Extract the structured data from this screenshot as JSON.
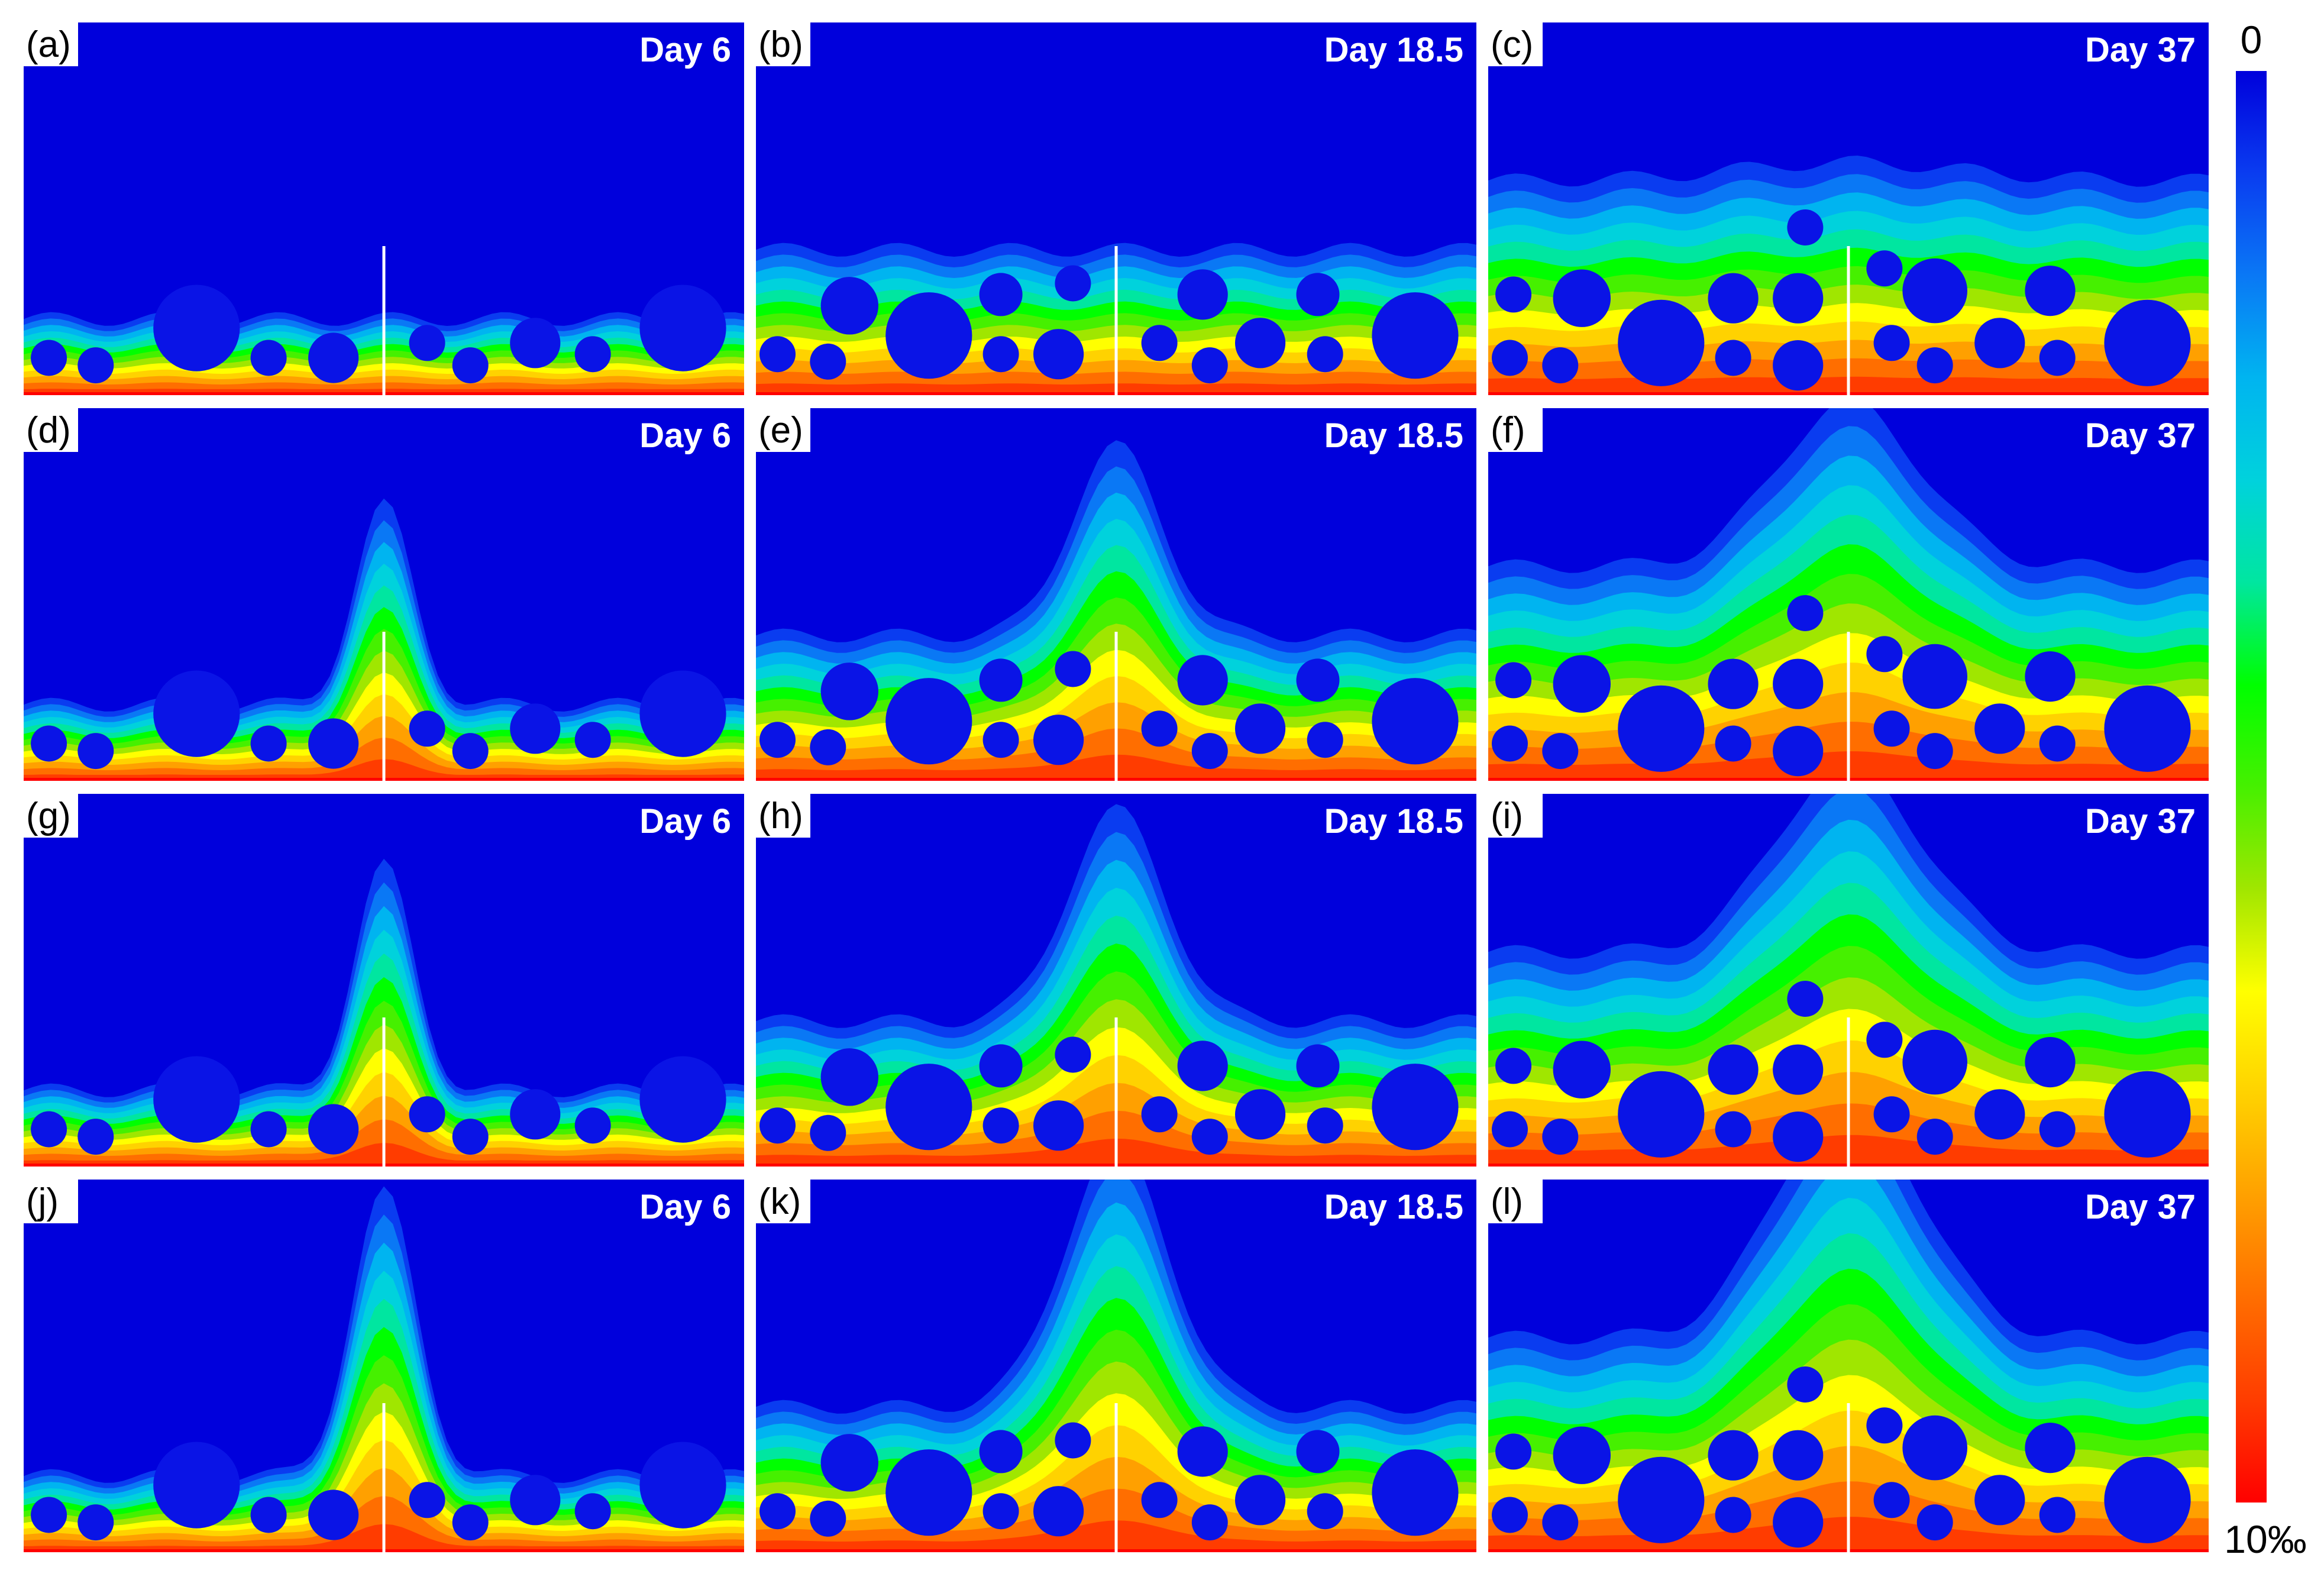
{
  "colors": {
    "background": "#0000dc",
    "particle": "#0a14e6",
    "crack": "#ffffff",
    "scale": [
      "#0000dc",
      "#0a3cf0",
      "#0a78f5",
      "#00b4f0",
      "#00d2dc",
      "#00e6a0",
      "#00ff00",
      "#46f000",
      "#a0e600",
      "#ffff00",
      "#ffd200",
      "#ffa000",
      "#ff6e00",
      "#ff3c00",
      "#ff0000"
    ]
  },
  "colorbar": {
    "min_label": "0",
    "max_label": "10‰"
  },
  "panels": [
    {
      "label": "(a)",
      "day": "Day 6",
      "row": 0,
      "col": 0,
      "front_level": 0.22,
      "crack_peak": 0.0,
      "peak_width": 0.0
    },
    {
      "label": "(b)",
      "day": "Day 18.5",
      "row": 0,
      "col": 1,
      "front_level": 0.42,
      "crack_peak": 0.0,
      "peak_width": 0.0
    },
    {
      "label": "(c)",
      "day": "Day 37",
      "row": 0,
      "col": 2,
      "front_level": 0.62,
      "crack_peak": 0.05,
      "peak_width": 0.35
    },
    {
      "label": "(d)",
      "day": "Day 6",
      "row": 1,
      "col": 0,
      "front_level": 0.22,
      "crack_peak": 0.55,
      "peak_width": 0.09
    },
    {
      "label": "(e)",
      "day": "Day 18.5",
      "row": 1,
      "col": 1,
      "front_level": 0.42,
      "crack_peak": 0.52,
      "peak_width": 0.14
    },
    {
      "label": "(f)",
      "day": "Day 37",
      "row": 1,
      "col": 2,
      "front_level": 0.62,
      "crack_peak": 0.45,
      "peak_width": 0.22
    },
    {
      "label": "(g)",
      "day": "Day 6",
      "row": 2,
      "col": 0,
      "front_level": 0.22,
      "crack_peak": 0.62,
      "peak_width": 0.09
    },
    {
      "label": "(h)",
      "day": "Day 18.5",
      "row": 2,
      "col": 1,
      "front_level": 0.42,
      "crack_peak": 0.58,
      "peak_width": 0.15
    },
    {
      "label": "(i)",
      "day": "Day 37",
      "row": 2,
      "col": 2,
      "front_level": 0.62,
      "crack_peak": 0.52,
      "peak_width": 0.22
    },
    {
      "label": "(j)",
      "day": "Day 6",
      "row": 3,
      "col": 0,
      "front_level": 0.22,
      "crack_peak": 0.78,
      "peak_width": 0.1
    },
    {
      "label": "(k)",
      "day": "Day 18.5",
      "row": 3,
      "col": 1,
      "front_level": 0.42,
      "crack_peak": 0.72,
      "peak_width": 0.16
    },
    {
      "label": "(l)",
      "day": "Day 37",
      "row": 3,
      "col": 2,
      "front_level": 0.62,
      "crack_peak": 0.66,
      "peak_width": 0.22
    }
  ]
}
